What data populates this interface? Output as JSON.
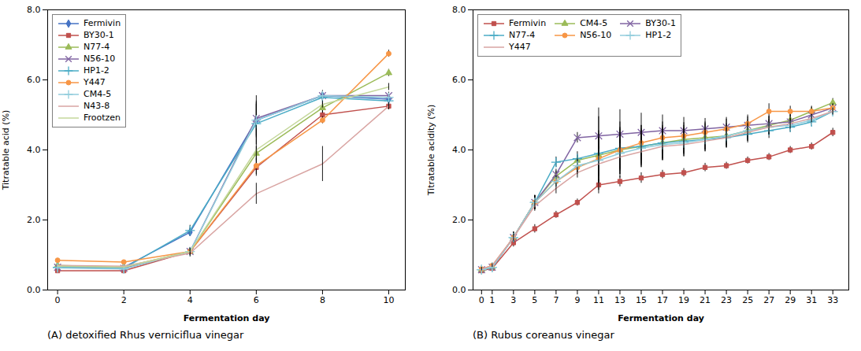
{
  "chart_data": [
    {
      "type": "line",
      "title": "(A) detoxified Rhus verniciflua vinegar",
      "xlabel": "Fermentation day",
      "ylabel": "Titratable acid (%)",
      "xlim": [
        -0.3,
        10.5
      ],
      "ylim": [
        0.0,
        8.0
      ],
      "xticks": [
        0,
        2,
        4,
        6,
        8,
        10
      ],
      "yticks": [
        {
          "value": 0.0,
          "label": "0.0"
        },
        {
          "value": 2.0,
          "label": "2.0"
        },
        {
          "value": 4.0,
          "label": "4.0"
        },
        {
          "value": 6.0,
          "label": "6.0"
        },
        {
          "value": 8.0,
          "label": "8.0"
        }
      ],
      "legend": "upper left",
      "x": [
        0,
        2,
        4,
        6,
        8,
        10
      ],
      "series": [
        {
          "name": "Fermivin",
          "color": "#4472C4",
          "marker": "diamond",
          "values": [
            0.65,
            0.65,
            1.65,
            4.85,
            5.55,
            5.45
          ],
          "yerr": [
            0.0,
            0.0,
            0.12,
            0.7,
            0.1,
            0.1
          ]
        },
        {
          "name": "BY30-1",
          "color": "#C0504D",
          "marker": "square",
          "values": [
            0.55,
            0.55,
            1.1,
            3.5,
            5.0,
            5.25
          ],
          "yerr": [
            0.0,
            0.0,
            0.1,
            0.25,
            0.15,
            0.1
          ]
        },
        {
          "name": "N77-4",
          "color": "#9BBB59",
          "marker": "triangle",
          "values": [
            0.7,
            0.65,
            1.1,
            3.9,
            5.2,
            6.2
          ],
          "yerr": [
            0.0,
            0.0,
            0.1,
            0.2,
            0.15,
            0.1
          ]
        },
        {
          "name": "N56-10",
          "color": "#8064A2",
          "marker": "x",
          "values": [
            0.65,
            0.62,
            1.1,
            4.9,
            5.55,
            5.55
          ],
          "yerr": [
            0.0,
            0.0,
            0.1,
            0.5,
            0.15,
            0.1
          ]
        },
        {
          "name": "HP1-2",
          "color": "#4BACC6",
          "marker": "plus",
          "values": [
            0.65,
            0.62,
            1.7,
            4.75,
            5.5,
            5.4
          ],
          "yerr": [
            0.0,
            0.0,
            0.15,
            0.55,
            0.1,
            0.1
          ]
        },
        {
          "name": "Y447",
          "color": "#F79646",
          "marker": "circle",
          "values": [
            0.85,
            0.8,
            1.1,
            3.55,
            4.85,
            6.75
          ],
          "yerr": [
            0.0,
            0.0,
            0.1,
            0.25,
            0.1,
            0.1
          ]
        },
        {
          "name": "CM4-5",
          "color": "#92CDDC",
          "marker": "plus",
          "values": [
            0.63,
            0.6,
            1.1,
            4.85,
            5.55,
            5.5
          ],
          "yerr": [
            0.0,
            0.0,
            0.1,
            0.5,
            0.1,
            0.1
          ]
        },
        {
          "name": "N43-8",
          "color": "#D9A5A3",
          "values": [
            0.7,
            0.68,
            1.05,
            2.75,
            3.6,
            5.25
          ],
          "yerr": [
            0.0,
            0.0,
            0.1,
            0.3,
            0.5,
            0.1
          ]
        },
        {
          "name": "Frootzen",
          "color": "#C4D79B",
          "values": [
            0.68,
            0.65,
            1.1,
            4.0,
            5.3,
            5.8
          ],
          "yerr": [
            0.0,
            0.0,
            0.1,
            0.2,
            0.1,
            0.1
          ]
        }
      ]
    },
    {
      "type": "line",
      "title": "(B) Rubus coreanus vinegar",
      "xlabel": "Fermentation day",
      "ylabel": "Titratable acidity (%)",
      "xlim": [
        -0.8,
        34.5
      ],
      "ylim": [
        0.0,
        8.0
      ],
      "xticks": [
        0,
        1,
        3,
        5,
        7,
        9,
        11,
        13,
        15,
        17,
        19,
        21,
        23,
        25,
        27,
        29,
        31,
        33
      ],
      "yticks": [
        {
          "value": 0.0,
          "label": "0.0"
        },
        {
          "value": 2.0,
          "label": "2.0"
        },
        {
          "value": 4.0,
          "label": "4.0"
        },
        {
          "value": 6.0,
          "label": "6.0"
        },
        {
          "value": 8.0,
          "label": "8.0"
        }
      ],
      "legend": "upper left",
      "x": [
        0,
        1,
        3,
        5,
        7,
        9,
        11,
        13,
        15,
        17,
        19,
        21,
        23,
        25,
        27,
        29,
        31,
        33
      ],
      "series": [
        {
          "name": "Fermivin",
          "color": "#C0504D",
          "marker": "square",
          "values": [
            0.55,
            0.62,
            1.35,
            1.75,
            2.15,
            2.5,
            3.0,
            3.1,
            3.2,
            3.3,
            3.35,
            3.5,
            3.55,
            3.7,
            3.8,
            4.0,
            4.1,
            4.5
          ],
          "yerr": [
            0.05,
            0.05,
            0.12,
            0.12,
            0.1,
            0.1,
            0.15,
            0.15,
            0.15,
            0.12,
            0.12,
            0.12,
            0.1,
            0.1,
            0.1,
            0.1,
            0.1,
            0.12
          ]
        },
        {
          "name": "CM4-5",
          "color": "#9BBB59",
          "marker": "triangle",
          "values": [
            0.58,
            0.65,
            1.5,
            2.5,
            3.25,
            3.7,
            3.85,
            4.0,
            4.1,
            4.2,
            4.3,
            4.35,
            4.4,
            4.55,
            4.7,
            4.85,
            5.1,
            5.35
          ],
          "yerr": [
            0.05,
            0.05,
            0.15,
            0.2,
            0.15,
            0.15,
            1.1,
            0.8,
            0.6,
            0.5,
            0.4,
            0.4,
            0.35,
            0.3,
            0.25,
            0.2,
            0.15,
            0.12
          ]
        },
        {
          "name": "BY30-1",
          "color": "#8064A2",
          "marker": "x",
          "values": [
            0.58,
            0.65,
            1.5,
            2.5,
            3.3,
            4.35,
            4.4,
            4.45,
            4.5,
            4.55,
            4.55,
            4.6,
            4.65,
            4.7,
            4.75,
            4.8,
            5.0,
            5.2
          ],
          "yerr": [
            0.05,
            0.05,
            0.15,
            0.2,
            0.15,
            0.15,
            0.8,
            0.7,
            0.55,
            0.45,
            0.38,
            0.3,
            0.28,
            0.25,
            0.22,
            0.2,
            0.15,
            0.12
          ]
        },
        {
          "name": "N77-4",
          "color": "#4BACC6",
          "marker": "plus",
          "values": [
            0.58,
            0.65,
            1.5,
            2.5,
            3.65,
            3.75,
            3.9,
            4.05,
            4.1,
            4.2,
            4.25,
            4.3,
            4.35,
            4.45,
            4.55,
            4.65,
            4.8,
            5.1
          ],
          "yerr": [
            0.05,
            0.05,
            0.15,
            0.2,
            0.15,
            0.2,
            0.65,
            0.6,
            0.5,
            0.45,
            0.38,
            0.3,
            0.28,
            0.25,
            0.22,
            0.15,
            0.12,
            0.1
          ]
        },
        {
          "name": "N56-10",
          "color": "#F79646",
          "marker": "circle",
          "values": [
            0.6,
            0.7,
            1.5,
            2.5,
            3.1,
            3.5,
            3.75,
            4.0,
            4.2,
            4.35,
            4.4,
            4.5,
            4.6,
            4.75,
            5.1,
            5.1,
            5.1,
            5.2
          ],
          "yerr": [
            0.05,
            0.05,
            0.15,
            0.2,
            0.15,
            0.2,
            0.7,
            0.6,
            0.5,
            0.45,
            0.38,
            0.3,
            0.28,
            0.25,
            0.22,
            0.15,
            0.12,
            0.1
          ]
        },
        {
          "name": "HP1-2",
          "color": "#92CDDC",
          "marker": "plus",
          "values": [
            0.58,
            0.65,
            1.5,
            2.5,
            3.1,
            3.55,
            3.7,
            3.9,
            4.05,
            4.15,
            4.2,
            4.3,
            4.4,
            4.55,
            4.65,
            4.7,
            4.85,
            5.1
          ],
          "yerr": [
            0.05,
            0.05,
            0.15,
            0.2,
            0.15,
            0.2,
            0.65,
            0.6,
            0.5,
            0.45,
            0.38,
            0.3,
            0.28,
            0.25,
            0.22,
            0.15,
            0.12,
            0.1
          ]
        },
        {
          "name": "Y447",
          "color": "#D9A5A3",
          "values": [
            0.6,
            0.7,
            1.5,
            2.4,
            2.9,
            3.35,
            3.6,
            3.8,
            3.95,
            4.1,
            4.15,
            4.25,
            4.35,
            4.5,
            4.65,
            4.75,
            4.9,
            5.1
          ],
          "yerr": [
            0.05,
            0.05,
            0.1,
            0.15,
            0.15,
            0.15,
            0.5,
            0.5,
            0.45,
            0.4,
            0.35,
            0.3,
            0.28,
            0.25,
            0.22,
            0.15,
            0.12,
            0.1
          ]
        }
      ]
    }
  ]
}
